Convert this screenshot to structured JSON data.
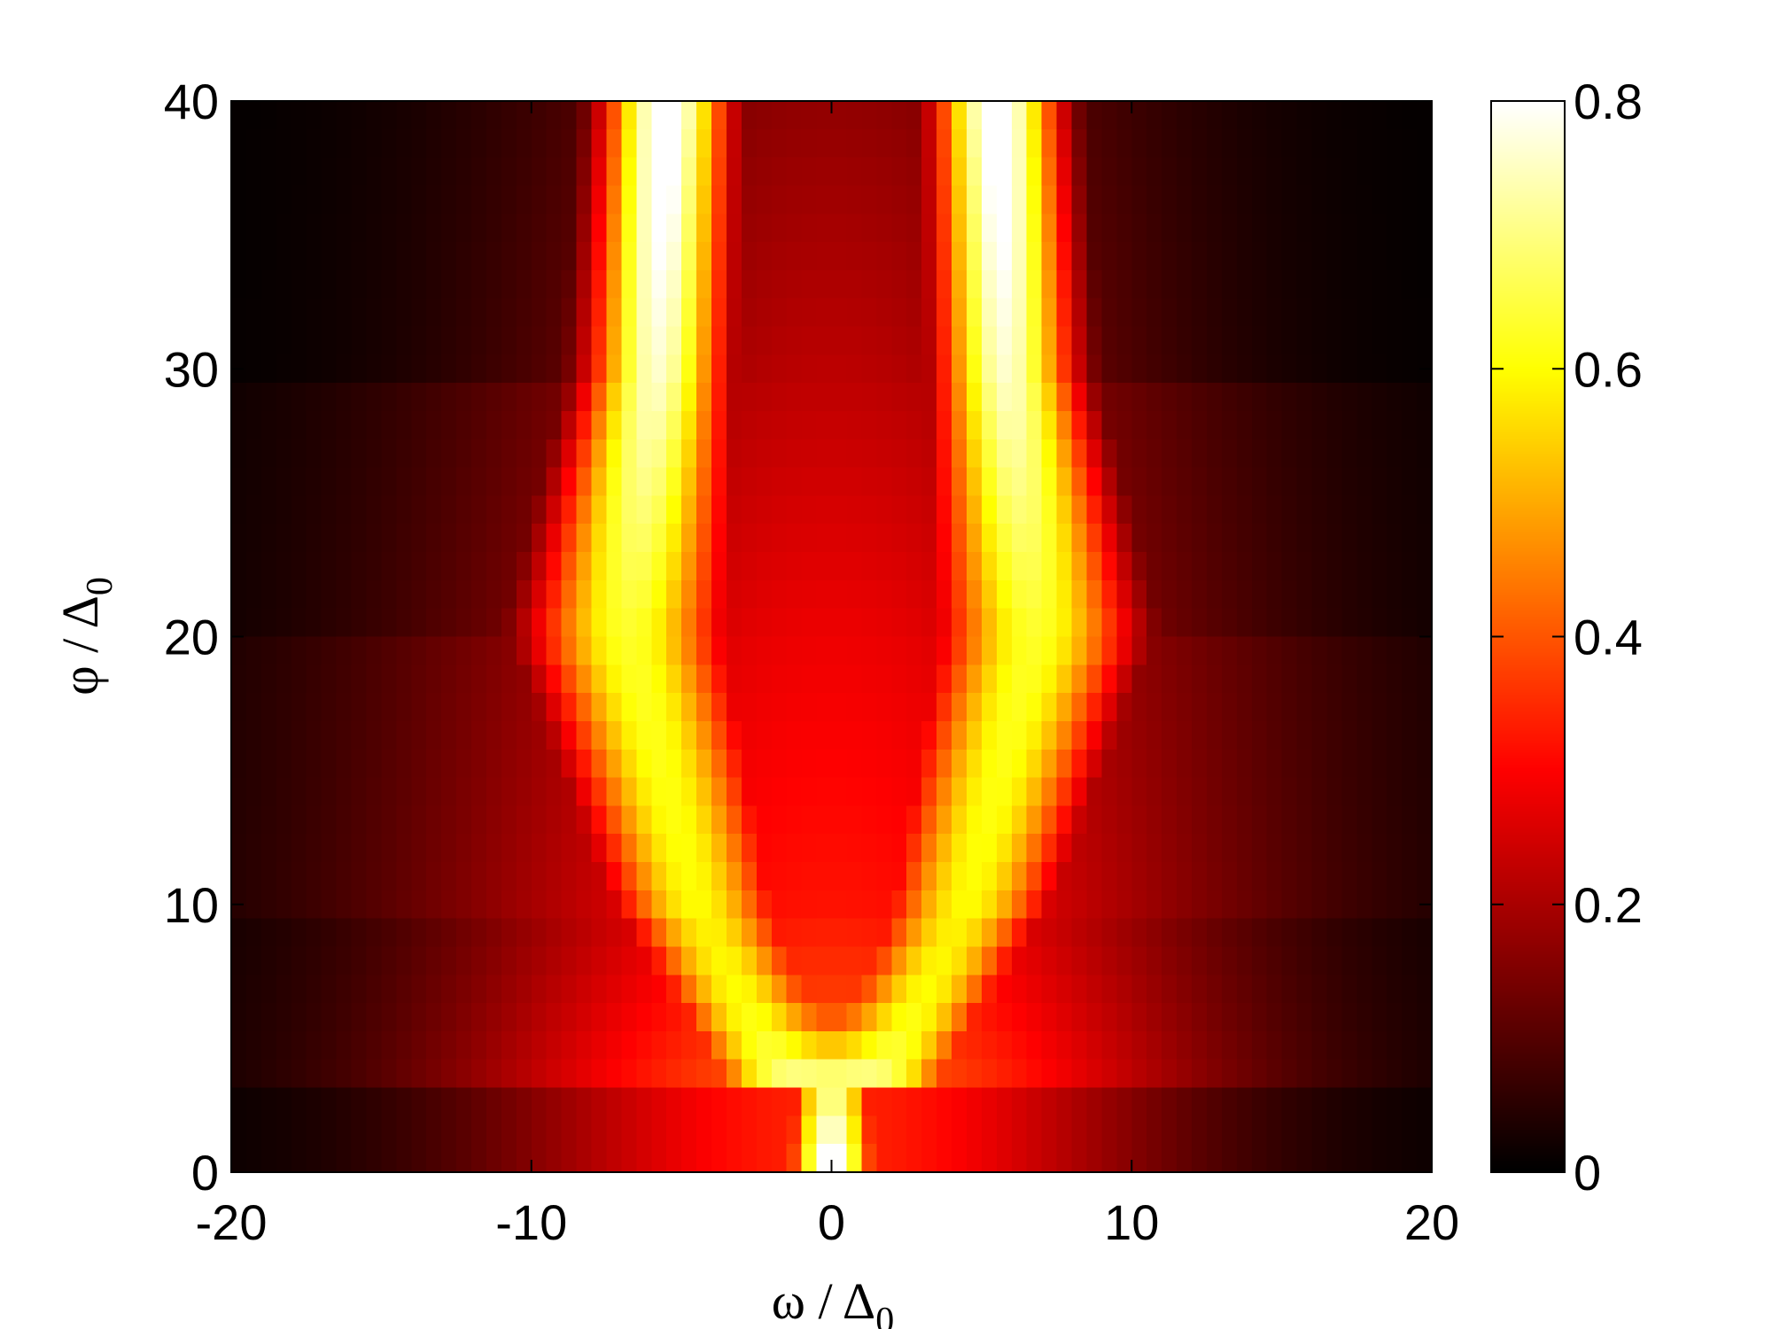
{
  "chart_data": {
    "type": "heatmap",
    "title": "",
    "xlabel": {
      "main": "ω / Δ",
      "sub": "0"
    },
    "ylabel": {
      "main": "φ / Δ",
      "sub": "0"
    },
    "xlim": [
      -20,
      20
    ],
    "ylim": [
      0,
      40
    ],
    "x_ticks": [
      "-20",
      "-10",
      "0",
      "10",
      "20"
    ],
    "y_ticks": [
      "0",
      "10",
      "20",
      "30",
      "40"
    ],
    "colorbar": {
      "colormap": "hot",
      "clim": [
        0,
        0.8
      ],
      "ticks": [
        "0",
        "0.2",
        "0.4",
        "0.6",
        "0.8"
      ]
    },
    "peaks": [
      {
        "phi": 0,
        "omega": 0,
        "value": 0.85
      },
      {
        "phi": 2,
        "omega": 0,
        "value": 0.8
      },
      {
        "phi": 10,
        "omega": -4.5,
        "value": 0.6
      },
      {
        "phi": 10,
        "omega": 4.5,
        "value": 0.6
      },
      {
        "phi": 20,
        "omega": -6.8,
        "value": 0.62
      },
      {
        "phi": 20,
        "omega": 6.8,
        "value": 0.62
      },
      {
        "phi": 30,
        "omega": -5.8,
        "value": 0.75
      },
      {
        "phi": 30,
        "omega": 5.8,
        "value": 0.75
      },
      {
        "phi": 40,
        "omega": -5.5,
        "value": 0.85
      },
      {
        "phi": 40,
        "omega": 5.5,
        "value": 0.85
      }
    ],
    "grid": false
  }
}
